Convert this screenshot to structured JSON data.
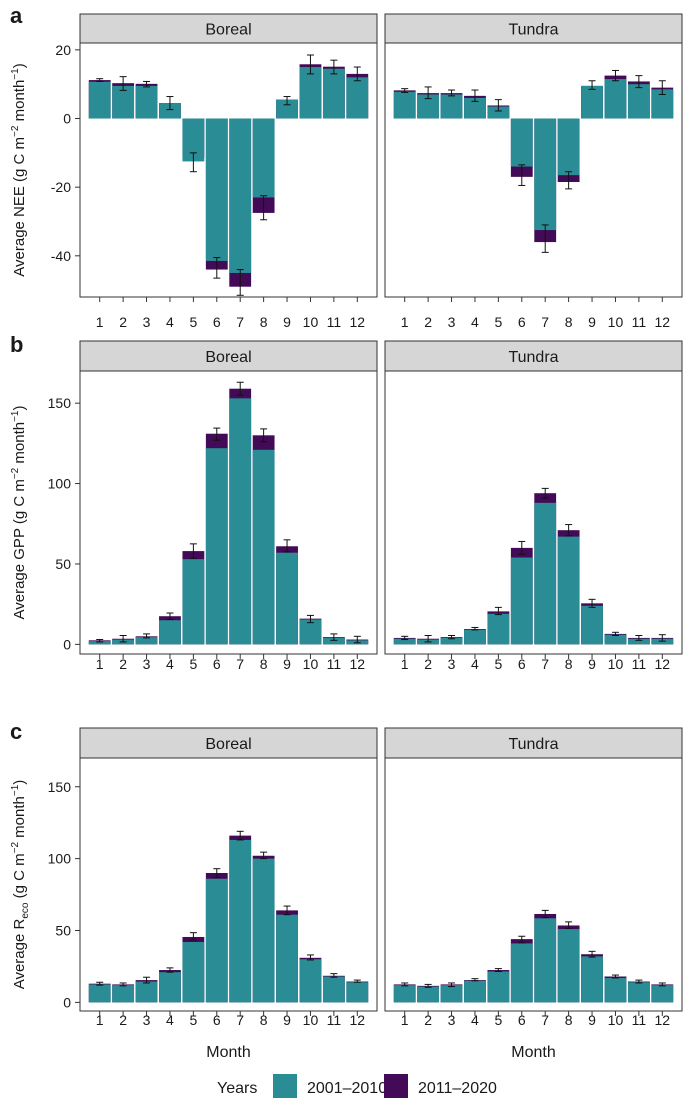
{
  "colors": {
    "base": "#2a8c94",
    "recent": "#430b57",
    "strip": "#d6d6d6",
    "frame": "#333333",
    "text": "#1a1a1a"
  },
  "legend": {
    "title": "Years",
    "items": [
      {
        "label": "2001–2010",
        "color": "#2a8c94"
      },
      {
        "label": "2011–2020",
        "color": "#430b57"
      }
    ]
  },
  "chart_data": [
    {
      "type": "bar",
      "title": "NEE",
      "panel_label": "a",
      "ylabel_parts": {
        "pre": "Average NEE (g C m",
        "sup1": "−2",
        "mid": " month",
        "sup2": "−1",
        "post": ")",
        "sub": ""
      },
      "ylim": [
        -52,
        22
      ],
      "yticks": [
        -40,
        -20,
        0,
        20
      ],
      "xlabel": "",
      "categories": [
        "1",
        "2",
        "3",
        "4",
        "5",
        "6",
        "7",
        "8",
        "9",
        "10",
        "11",
        "12"
      ],
      "facets": [
        {
          "name": "Boreal",
          "series": [
            {
              "name": "2001–2010",
              "values": [
                10.7,
                9.5,
                9.5,
                4.5,
                -12.5,
                -41.5,
                -45.0,
                -23.0,
                5.5,
                15.0,
                14.5,
                12.0
              ]
            },
            {
              "name": "2011–2020",
              "values": [
                11.2,
                10.3,
                10.1,
                4.5,
                -11.5,
                -44.0,
                -49.0,
                -27.5,
                5.5,
                15.8,
                15.1,
                13.0
              ]
            }
          ],
          "err_low": [
            10.8,
            8.2,
            9.2,
            2.6,
            -15.5,
            -46.5,
            -51.5,
            -29.5,
            4.0,
            13.0,
            13.0,
            11.0
          ],
          "err_high": [
            11.6,
            12.2,
            10.8,
            6.4,
            -10.0,
            -40.5,
            -44.0,
            -22.5,
            6.4,
            18.5,
            17.0,
            15.0
          ]
        },
        {
          "name": "Tundra",
          "series": [
            {
              "name": "2001–2010",
              "values": [
                7.8,
                7.0,
                7.0,
                6.0,
                3.5,
                -14.0,
                -32.5,
                -16.5,
                9.5,
                11.5,
                10.0,
                8.5
              ]
            },
            {
              "name": "2011–2020",
              "values": [
                8.2,
                7.4,
                7.4,
                6.6,
                3.8,
                -17.0,
                -36.0,
                -18.5,
                9.5,
                12.5,
                10.8,
                9.0
              ]
            }
          ],
          "err_low": [
            7.6,
            5.8,
            6.6,
            5.0,
            2.2,
            -19.5,
            -39.0,
            -20.5,
            8.5,
            11.0,
            9.0,
            7.0
          ],
          "err_high": [
            8.7,
            9.2,
            8.3,
            8.3,
            5.5,
            -13.5,
            -31.0,
            -15.5,
            11.0,
            14.0,
            12.5,
            11.0
          ]
        }
      ]
    },
    {
      "type": "bar",
      "title": "GPP",
      "panel_label": "b",
      "ylabel_parts": {
        "pre": "Average GPP (g C m",
        "sup1": "−2",
        "mid": " month",
        "sup2": "−1",
        "post": ")",
        "sub": ""
      },
      "ylim": [
        -6,
        170
      ],
      "yticks": [
        0,
        50,
        100,
        150
      ],
      "xlabel": "",
      "categories": [
        "1",
        "2",
        "3",
        "4",
        "5",
        "6",
        "7",
        "8",
        "9",
        "10",
        "11",
        "12"
      ],
      "facets": [
        {
          "name": "Boreal",
          "series": [
            {
              "name": "2001–2010",
              "values": [
                2.0,
                3.0,
                4.5,
                15.0,
                53.0,
                122.0,
                153.0,
                121.0,
                57.0,
                15.5,
                4.0,
                2.5
              ]
            },
            {
              "name": "2011–2020",
              "values": [
                2.5,
                3.5,
                5.0,
                17.5,
                58.0,
                131.0,
                159.0,
                130.0,
                61.0,
                16.0,
                4.5,
                3.0
              ]
            }
          ],
          "err_low": [
            1.5,
            1.5,
            4.0,
            15.5,
            53.5,
            127.0,
            155.0,
            126.0,
            57.5,
            13.5,
            2.5,
            1.0
          ],
          "err_high": [
            3.0,
            5.5,
            6.5,
            19.5,
            62.5,
            134.5,
            163.0,
            134.0,
            65.0,
            18.0,
            6.5,
            5.0
          ]
        },
        {
          "name": "Tundra",
          "series": [
            {
              "name": "2001–2010",
              "values": [
                3.5,
                3.0,
                4.0,
                9.0,
                19.0,
                54.0,
                88.0,
                67.0,
                24.0,
                6.0,
                3.5,
                3.5
              ]
            },
            {
              "name": "2011–2020",
              "values": [
                4.0,
                3.5,
                4.5,
                9.5,
                20.5,
                60.0,
                94.0,
                71.0,
                25.5,
                6.5,
                4.0,
                4.0
              ]
            }
          ],
          "err_low": [
            3.0,
            1.5,
            3.5,
            9.0,
            18.5,
            56.0,
            91.0,
            67.5,
            23.0,
            5.5,
            2.5,
            2.0
          ],
          "err_high": [
            5.0,
            5.5,
            5.5,
            10.5,
            23.0,
            64.0,
            97.0,
            74.5,
            28.0,
            7.5,
            5.5,
            6.0
          ]
        }
      ]
    },
    {
      "type": "bar",
      "title": "Reco",
      "panel_label": "c",
      "ylabel_parts": {
        "pre": "Average R",
        "sup1": "",
        "mid": " (g C m",
        "sup2": "−2",
        "post": " month",
        "sub": "eco",
        "sup3": "−1",
        "end": ")"
      },
      "ylim": [
        -6,
        170
      ],
      "yticks": [
        0,
        50,
        100,
        150
      ],
      "xlabel": "Month",
      "categories": [
        "1",
        "2",
        "3",
        "4",
        "5",
        "6",
        "7",
        "8",
        "9",
        "10",
        "11",
        "12"
      ],
      "facets": [
        {
          "name": "Boreal",
          "series": [
            {
              "name": "2001–2010",
              "values": [
                12.5,
                12.0,
                14.5,
                21.0,
                42.0,
                86.0,
                113.0,
                100.0,
                61.0,
                30.0,
                18.0,
                14.0
              ]
            },
            {
              "name": "2011–2020",
              "values": [
                13.0,
                12.5,
                15.5,
                22.5,
                45.5,
                90.0,
                116.0,
                102.0,
                64.0,
                31.0,
                18.5,
                14.5
              ]
            }
          ],
          "err_low": [
            12.0,
            11.5,
            13.5,
            21.0,
            43.5,
            87.0,
            113.0,
            100.0,
            61.0,
            29.5,
            17.5,
            14.0
          ],
          "err_high": [
            14.0,
            13.5,
            17.5,
            24.0,
            48.5,
            93.0,
            119.0,
            104.5,
            67.0,
            33.0,
            20.0,
            15.5
          ]
        },
        {
          "name": "Tundra",
          "series": [
            {
              "name": "2001–2010",
              "values": [
                12.0,
                11.0,
                12.0,
                15.0,
                21.5,
                41.0,
                58.5,
                51.0,
                32.0,
                17.0,
                14.0,
                12.0
              ]
            },
            {
              "name": "2011–2020",
              "values": [
                12.5,
                11.5,
                12.5,
                15.5,
                22.5,
                44.0,
                61.5,
                53.5,
                33.5,
                18.0,
                14.5,
                12.5
              ]
            }
          ],
          "err_low": [
            11.5,
            10.5,
            11.0,
            15.0,
            21.5,
            41.5,
            59.0,
            51.5,
            31.5,
            17.0,
            13.5,
            11.5
          ],
          "err_high": [
            13.5,
            12.5,
            13.5,
            16.5,
            23.5,
            46.0,
            64.0,
            56.0,
            35.5,
            19.0,
            15.5,
            13.5
          ]
        }
      ]
    }
  ]
}
